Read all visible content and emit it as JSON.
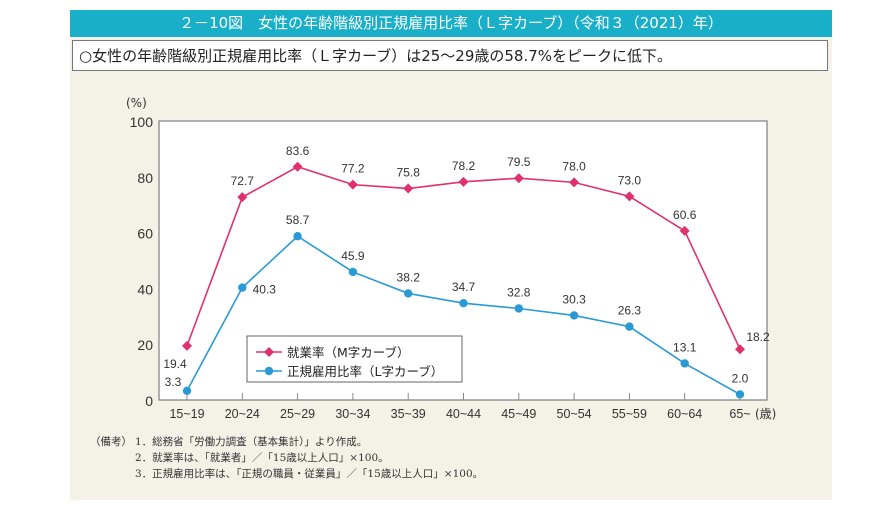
{
  "header": {
    "title": "２－10図　女性の年齢階級別正規雇用比率（Ｌ字カーブ）（令和３（2021）年）"
  },
  "subtitle": "○女性の年齢階級別正規雇用比率（Ｌ字カーブ）は25～29歳の58.7%をピークに低下。",
  "chart_data": {
    "type": "line",
    "ylabel": "(%)",
    "xlabel": "(歳)",
    "ylim": [
      0,
      100
    ],
    "yticks": [
      "0",
      "20",
      "40",
      "60",
      "80",
      "100"
    ],
    "categories": [
      "15~19",
      "20~24",
      "25~29",
      "30~34",
      "35~39",
      "40~44",
      "45~49",
      "50~54",
      "55~59",
      "60~64",
      "65~"
    ],
    "grid": false,
    "legend": "bottom-left",
    "series": [
      {
        "name": "就業率（M字カーブ）",
        "color": "#e0306e",
        "marker": "diamond",
        "values": [
          19.4,
          72.7,
          83.6,
          77.2,
          75.8,
          78.2,
          79.5,
          78.0,
          73.0,
          60.6,
          18.2
        ],
        "labels": [
          "19.4",
          "72.7",
          "83.6",
          "77.2",
          "75.8",
          "78.2",
          "79.5",
          "78.0",
          "73.0",
          "60.6",
          "18.2"
        ]
      },
      {
        "name": "正規雇用比率（L字カーブ）",
        "color": "#2a9ad6",
        "marker": "circle",
        "values": [
          3.3,
          40.3,
          58.7,
          45.9,
          38.2,
          34.7,
          32.8,
          30.3,
          26.3,
          13.1,
          2.0
        ],
        "labels": [
          "3.3",
          "40.3",
          "58.7",
          "45.9",
          "38.2",
          "34.7",
          "32.8",
          "30.3",
          "26.3",
          "13.1",
          "2.0"
        ]
      }
    ]
  },
  "notes": {
    "label": "（備考）",
    "items": [
      "1．総務省「労働力調査（基本集計）」より作成。",
      "2．就業率は、「就業者」／「15歳以上人口」×100。",
      "3．正規雇用比率は、「正規の職員・従業員」／「15歳以上人口」×100。"
    ]
  }
}
